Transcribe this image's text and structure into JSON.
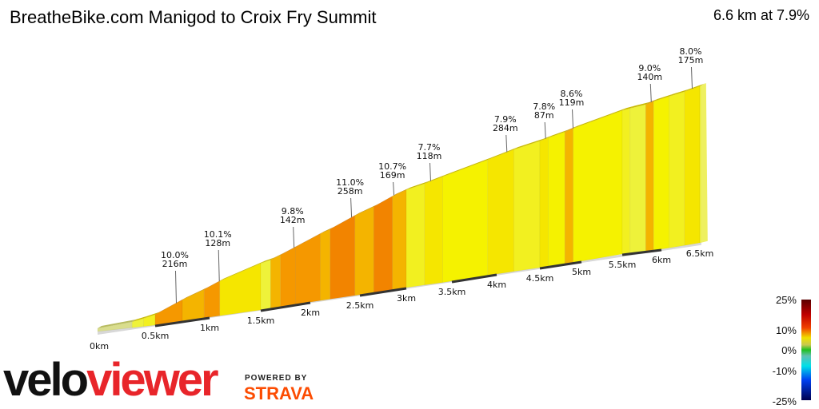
{
  "title": "BreatheBike.com Manigod to Croix Fry Summit",
  "summary": "6.6 km at 7.9%",
  "chart_data": {
    "type": "area",
    "title": "BreatheBike.com Manigod to Croix Fry Summit",
    "xlabel": "",
    "ylabel": "",
    "x_unit": "km",
    "x_ticks": [
      "0km",
      "0.5km",
      "1km",
      "1.5km",
      "2km",
      "2.5km",
      "3km",
      "3.5km",
      "4km",
      "4.5km",
      "5km",
      "5.5km",
      "6km",
      "6.5km"
    ],
    "segments": [
      {
        "from": 0,
        "to": 0.3,
        "gradient": 2
      },
      {
        "from": 0.3,
        "to": 0.4,
        "gradient": 5
      },
      {
        "from": 0.4,
        "to": 0.5,
        "gradient": 6
      },
      {
        "from": 0.5,
        "to": 0.75,
        "gradient": 10
      },
      {
        "from": 0.75,
        "to": 0.95,
        "gradient": 8.5
      },
      {
        "from": 0.95,
        "to": 1.1,
        "gradient": 10.1
      },
      {
        "from": 1.1,
        "to": 1.5,
        "gradient": 7.5
      },
      {
        "from": 1.5,
        "to": 1.6,
        "gradient": 5
      },
      {
        "from": 1.6,
        "to": 1.7,
        "gradient": 8.5
      },
      {
        "from": 1.7,
        "to": 1.85,
        "gradient": 9.5
      },
      {
        "from": 1.85,
        "to": 2.1,
        "gradient": 10
      },
      {
        "from": 2.1,
        "to": 2.2,
        "gradient": 8.5
      },
      {
        "from": 2.2,
        "to": 2.45,
        "gradient": 11
      },
      {
        "from": 2.45,
        "to": 2.65,
        "gradient": 8.5
      },
      {
        "from": 2.65,
        "to": 2.85,
        "gradient": 10.7
      },
      {
        "from": 2.85,
        "to": 3.0,
        "gradient": 8.5
      },
      {
        "from": 3.0,
        "to": 3.2,
        "gradient": 6
      },
      {
        "from": 3.2,
        "to": 3.4,
        "gradient": 7.2
      },
      {
        "from": 3.4,
        "to": 3.9,
        "gradient": 6.8
      },
      {
        "from": 3.9,
        "to": 4.2,
        "gradient": 7.4
      },
      {
        "from": 4.2,
        "to": 4.5,
        "gradient": 6.2
      },
      {
        "from": 4.5,
        "to": 4.6,
        "gradient": 7.3
      },
      {
        "from": 4.6,
        "to": 4.8,
        "gradient": 6.8
      },
      {
        "from": 4.8,
        "to": 4.9,
        "gradient": 8.3
      },
      {
        "from": 4.9,
        "to": 5.5,
        "gradient": 6.9
      },
      {
        "from": 5.5,
        "to": 5.6,
        "gradient": 6
      },
      {
        "from": 5.6,
        "to": 5.8,
        "gradient": 5.5
      },
      {
        "from": 5.8,
        "to": 5.9,
        "gradient": 9
      },
      {
        "from": 5.9,
        "to": 6.1,
        "gradient": 7
      },
      {
        "from": 6.1,
        "to": 6.3,
        "gradient": 6.2
      },
      {
        "from": 6.3,
        "to": 6.5,
        "gradient": 7.5
      },
      {
        "from": 6.5,
        "to": 6.6,
        "gradient": 5
      }
    ],
    "annotations": [
      {
        "km": 0.68,
        "gradient": "10.0%",
        "length": "216m"
      },
      {
        "km": 1.08,
        "gradient": "10.1%",
        "length": "128m"
      },
      {
        "km": 1.82,
        "gradient": "9.8%",
        "length": "142m"
      },
      {
        "km": 2.4,
        "gradient": "11.0%",
        "length": "258m"
      },
      {
        "km": 2.85,
        "gradient": "10.7%",
        "length": "169m"
      },
      {
        "km": 3.25,
        "gradient": "7.7%",
        "length": "118m"
      },
      {
        "km": 4.1,
        "gradient": "7.9%",
        "length": "284m"
      },
      {
        "km": 4.55,
        "gradient": "7.8%",
        "length": "87m"
      },
      {
        "km": 4.88,
        "gradient": "8.6%",
        "length": "119m"
      },
      {
        "km": 5.85,
        "gradient": "9.0%",
        "length": "140m"
      },
      {
        "km": 6.38,
        "gradient": "8.0%",
        "length": "175m"
      }
    ],
    "colorbar": {
      "labels": [
        "25%",
        "10%",
        "0%",
        "-10%",
        "-25%"
      ],
      "range": [
        -25,
        25
      ]
    },
    "grid": false,
    "legend": "right"
  },
  "branding": {
    "logo_velo": "velo",
    "logo_viewer": "viewer",
    "powered_by": "POWERED BY",
    "strava": "STRAVA"
  }
}
